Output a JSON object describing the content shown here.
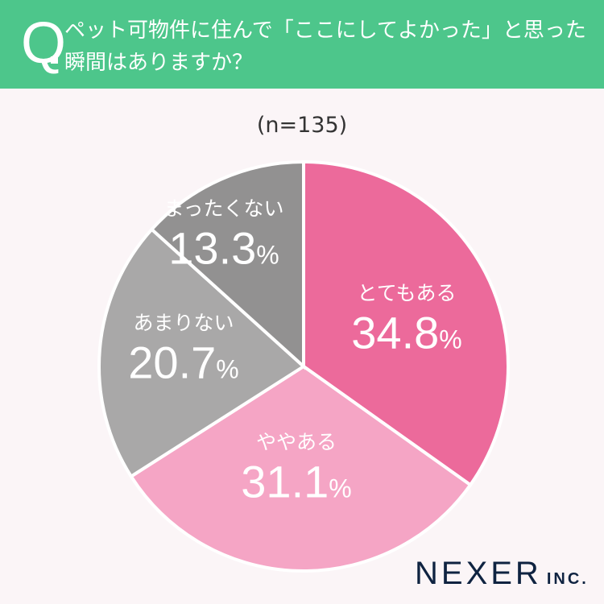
{
  "header": {
    "q_mark": "Q",
    "title": "ペット可物件に住んで「ここにしてよかった」と思った瞬間はありますか？"
  },
  "sample": "(n=135)",
  "logo": {
    "main": "NEXER",
    "suffix": "INC."
  },
  "colors": {
    "header": "#4DC68B",
    "background": "#FBF5F7"
  },
  "chart_data": {
    "type": "pie",
    "title": "ペット可物件に住んで「ここにしてよかった」と思った瞬間はありますか？",
    "start": "top-clockwise",
    "unit": "%",
    "slices": [
      {
        "label": "とてもある",
        "value": 34.8,
        "display": "34.8",
        "color": "#EC6A9B"
      },
      {
        "label": "ややある",
        "value": 31.1,
        "display": "31.1",
        "color": "#F5A5C5"
      },
      {
        "label": "あまりない",
        "value": 20.7,
        "display": "20.7",
        "color": "#A9A8A8"
      },
      {
        "label": "まったくない",
        "value": 13.3,
        "display": "13.3",
        "color": "#929191"
      }
    ]
  }
}
